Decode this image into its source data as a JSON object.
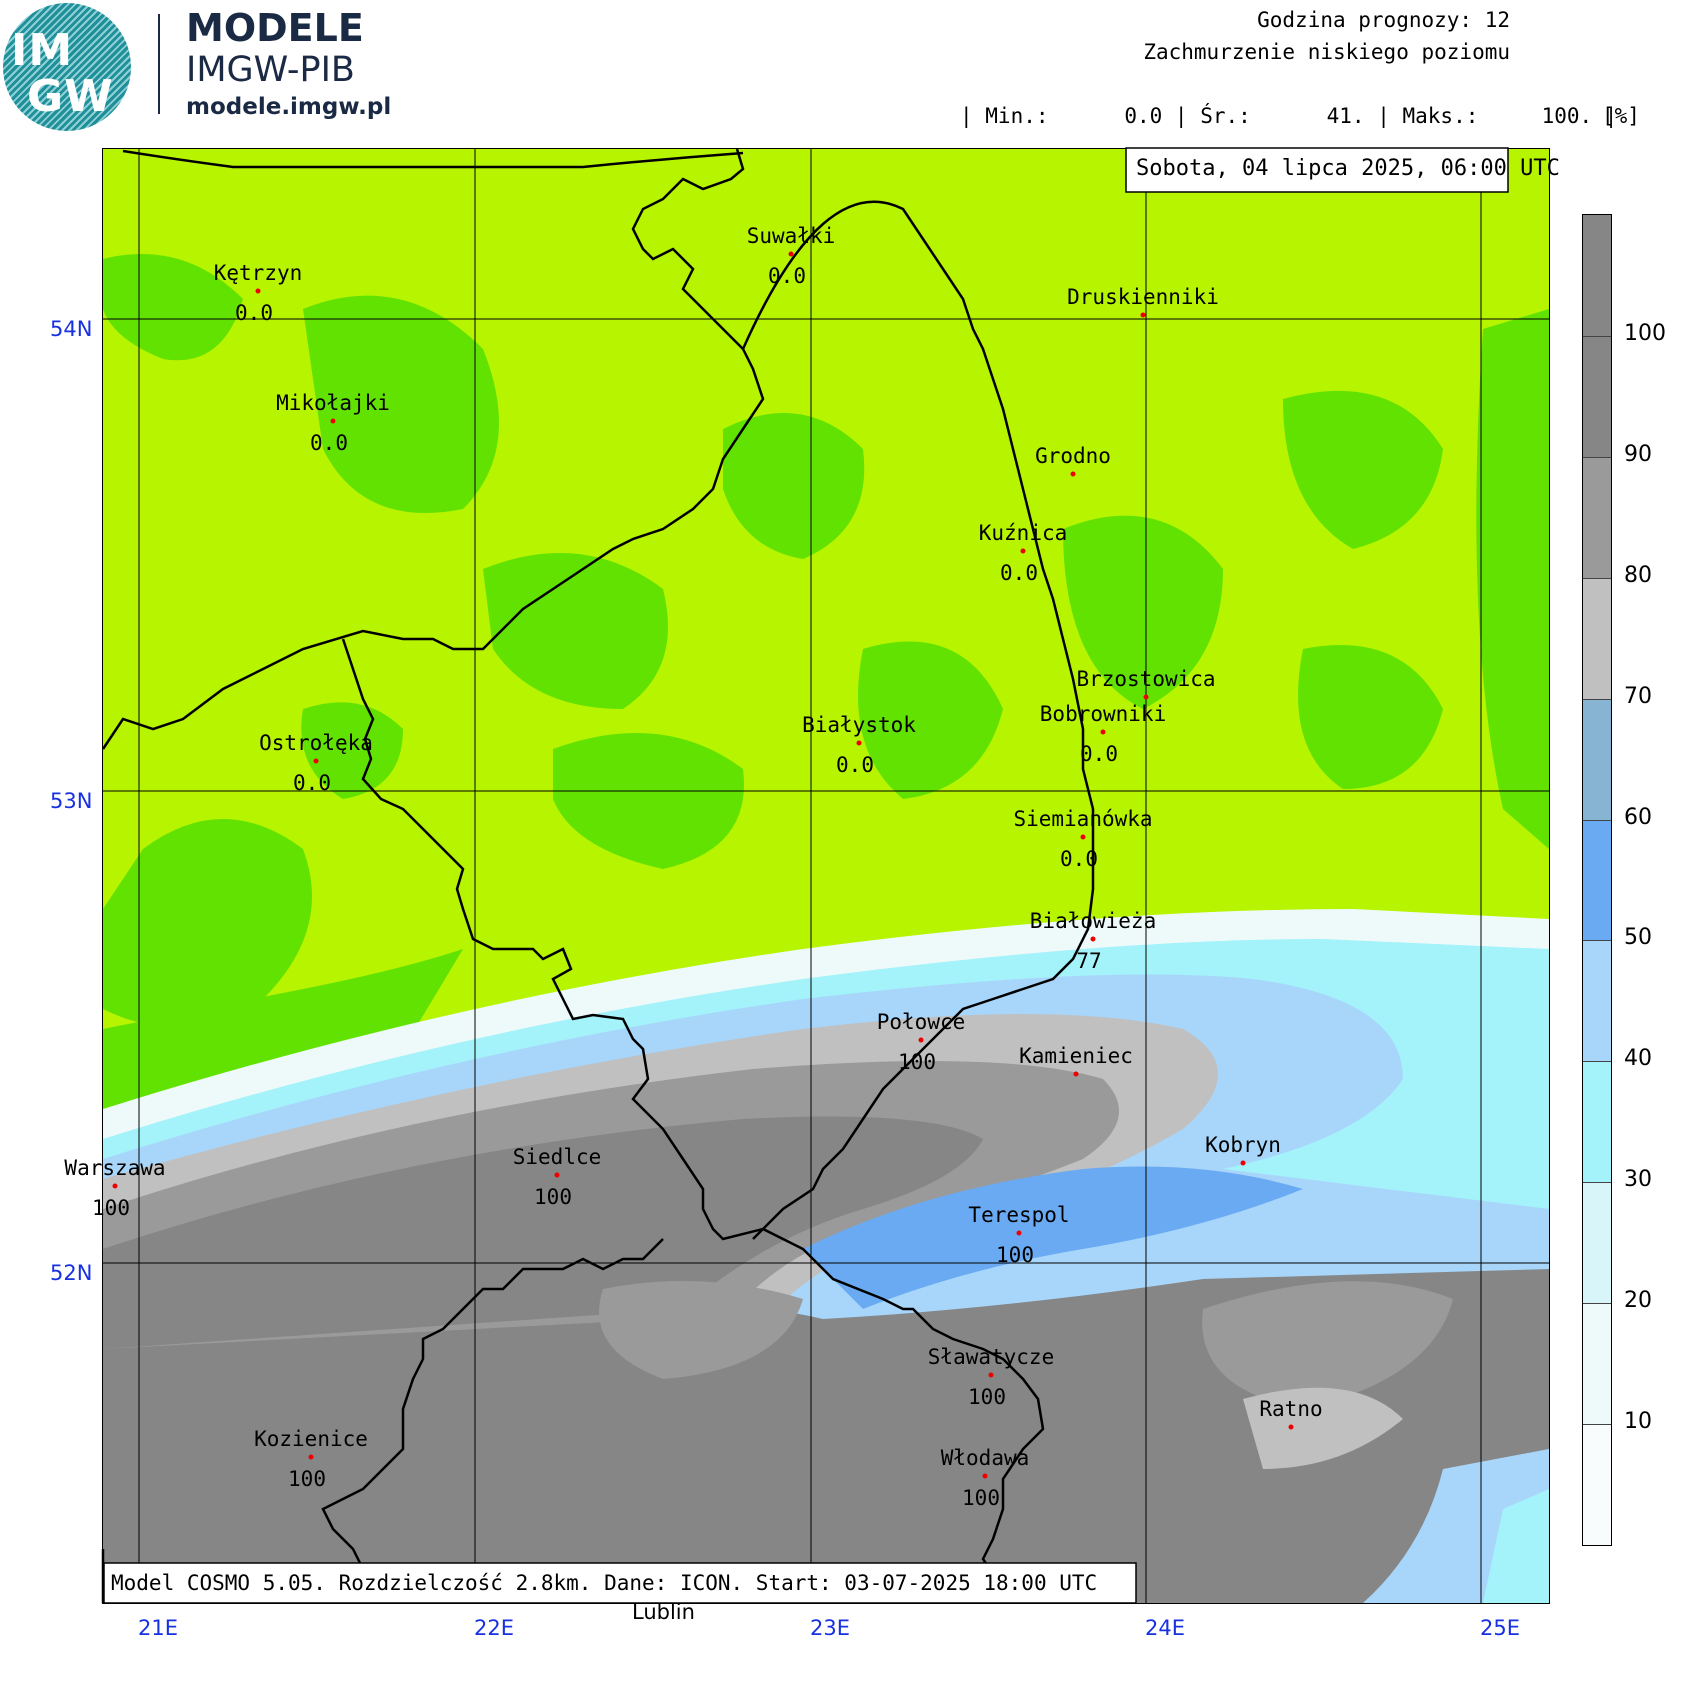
{
  "logo": {
    "top_text": "IM",
    "bottom_text": "GW",
    "title": "MODELE",
    "subtitle": "IMGW-PIB",
    "url": "modele.imgw.pl"
  },
  "header": {
    "forecast_hour": "Godzina prognozy: 12",
    "parameter": "Zachmurzenie niskiego poziomu",
    "stats": "| Min.:      0.0 | Śr.:      41. | Maks.:     100. |",
    "unit": "[%]"
  },
  "date_box": "Sobota, 04 lipca 2025, 06:00 UTC",
  "model_info": "Model COSMO 5.05. Rozdzielczość 2.8km. Dane: ICON. Start: 03-07-2025 18:00 UTC",
  "bottom_city": "Lublin",
  "lat_labels": [
    "54N",
    "53N",
    "52N"
  ],
  "lon_labels": [
    "21E",
    "22E",
    "23E",
    "24E",
    "25E"
  ],
  "colorbar": {
    "labels": [
      "100",
      "90",
      "80",
      "70",
      "60",
      "50",
      "40",
      "30",
      "20",
      "10"
    ],
    "colors": [
      "#868686",
      "#9a9a9a",
      "#c0c0c0",
      "#86b4d2",
      "#6aaaf2",
      "#a8d6fa",
      "#a4f2fa",
      "#d8f6fa",
      "#eefafa",
      "#f8fcfc"
    ]
  },
  "cities": [
    {
      "name": "Kętrzyn",
      "value": "0.0"
    },
    {
      "name": "Suwałki",
      "value": "0.0"
    },
    {
      "name": "Druskienniki",
      "value": ""
    },
    {
      "name": "Mikołajki",
      "value": "0.0"
    },
    {
      "name": "Grodno",
      "value": ""
    },
    {
      "name": "Kuźnica",
      "value": "0.0"
    },
    {
      "name": "Brzostowica",
      "value": ""
    },
    {
      "name": "Bobrowniki",
      "value": "0.0"
    },
    {
      "name": "Białystok",
      "value": "0.0"
    },
    {
      "name": "Ostrołęka",
      "value": "0.0"
    },
    {
      "name": "Siemianówka",
      "value": "0.0"
    },
    {
      "name": "Białowieża",
      "value": "77"
    },
    {
      "name": "Połowce",
      "value": "100"
    },
    {
      "name": "Kamieniec",
      "value": ""
    },
    {
      "name": "Warszawa",
      "value": "100"
    },
    {
      "name": "Siedlce",
      "value": "100"
    },
    {
      "name": "Kobryn",
      "value": ""
    },
    {
      "name": "Terespol",
      "value": "100"
    },
    {
      "name": "Sławatycze",
      "value": "100"
    },
    {
      "name": "Ratno",
      "value": ""
    },
    {
      "name": "Kozienice",
      "value": "100"
    },
    {
      "name": "Włodawa",
      "value": "100"
    }
  ]
}
